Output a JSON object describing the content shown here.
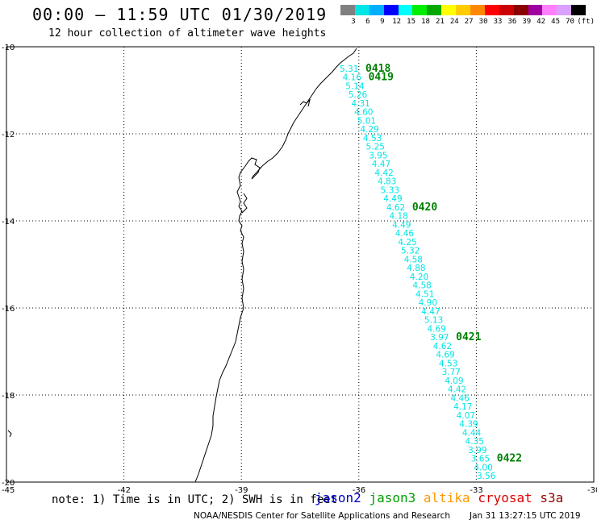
{
  "header": {
    "title": "00:00 – 11:59 UTC 01/30/2019",
    "subtitle": "12 hour collection of altimeter wave heights"
  },
  "legend": {
    "scale_labels": [
      "3",
      "6",
      "9",
      "12",
      "15",
      "18",
      "21",
      "24",
      "27",
      "30",
      "33",
      "36",
      "39",
      "42",
      "45",
      "70",
      "(ft)"
    ],
    "colors": [
      "#808080",
      "#00e5e5",
      "#00b0ff",
      "#0000ff",
      "#00ffff",
      "#00ee00",
      "#00a800",
      "#ffff00",
      "#ffcc00",
      "#ff8800",
      "#ff0000",
      "#cc0000",
      "#8b0000",
      "#a000a0",
      "#ff80ff",
      "#d8a0ff",
      "#000000"
    ]
  },
  "axes": {
    "lon_ticks": [
      {
        "value": -45,
        "label": "-45"
      },
      {
        "value": -42,
        "label": "-42"
      },
      {
        "value": -39,
        "label": "-39"
      },
      {
        "value": -36,
        "label": "-36"
      },
      {
        "value": -33,
        "label": "-33"
      },
      {
        "value": -30,
        "label": "-30"
      }
    ],
    "lat_ticks": [
      {
        "value": -10,
        "label": "-10"
      },
      {
        "value": -12,
        "label": "-12"
      },
      {
        "value": -14,
        "label": "-14"
      },
      {
        "value": -16,
        "label": "-16"
      },
      {
        "value": -18,
        "label": "-18"
      },
      {
        "value": -20,
        "label": "-20"
      }
    ]
  },
  "track": {
    "color": "#00e5e5",
    "label_color": "#008000",
    "wave_heights": [
      "5.31",
      "4.16",
      "5.14",
      "5.26",
      "4.31",
      "4.60",
      "5.01",
      "4.29",
      "4.53",
      "5.25",
      "3.95",
      "4.47",
      "4.42",
      "4.83",
      "5.33",
      "4.49",
      "4.62",
      "4.18",
      "4.49",
      "4.46",
      "4.25",
      "5.32",
      "4.58",
      "4.88",
      "4.20",
      "4.58",
      "4.51",
      "4.90",
      "4.47",
      "5.13",
      "4.69",
      "3.97",
      "4.62",
      "4.69",
      "4.53",
      "3.77",
      "4.09",
      "4.42",
      "4.46",
      "4.17",
      "4.07",
      "4.39",
      "4.44",
      "4.35",
      "3.99",
      "3.65",
      "4.00",
      "3.56"
    ],
    "time_labels": [
      {
        "text": "0418",
        "index": 0
      },
      {
        "text": "0419",
        "index": 1
      },
      {
        "text": "0420",
        "index": 16
      },
      {
        "text": "0421",
        "index": 31
      },
      {
        "text": "0422",
        "index": 45
      }
    ]
  },
  "footer": {
    "note": "note: 1) Time is in UTC; 2) SWH is in feet",
    "satellites": [
      {
        "name": "jason2",
        "color": "#0000cc"
      },
      {
        "name": "jason3",
        "color": "#00a000"
      },
      {
        "name": "altika",
        "color": "#ff9900"
      },
      {
        "name": "cryosat",
        "color": "#dd0000"
      },
      {
        "name": "s3a",
        "color": "#990000"
      }
    ],
    "credit": "NOAA/NESDIS Center for Satellite Applications and Research",
    "timestamp": "Jan 31 13:27:15 UTC 2019"
  }
}
